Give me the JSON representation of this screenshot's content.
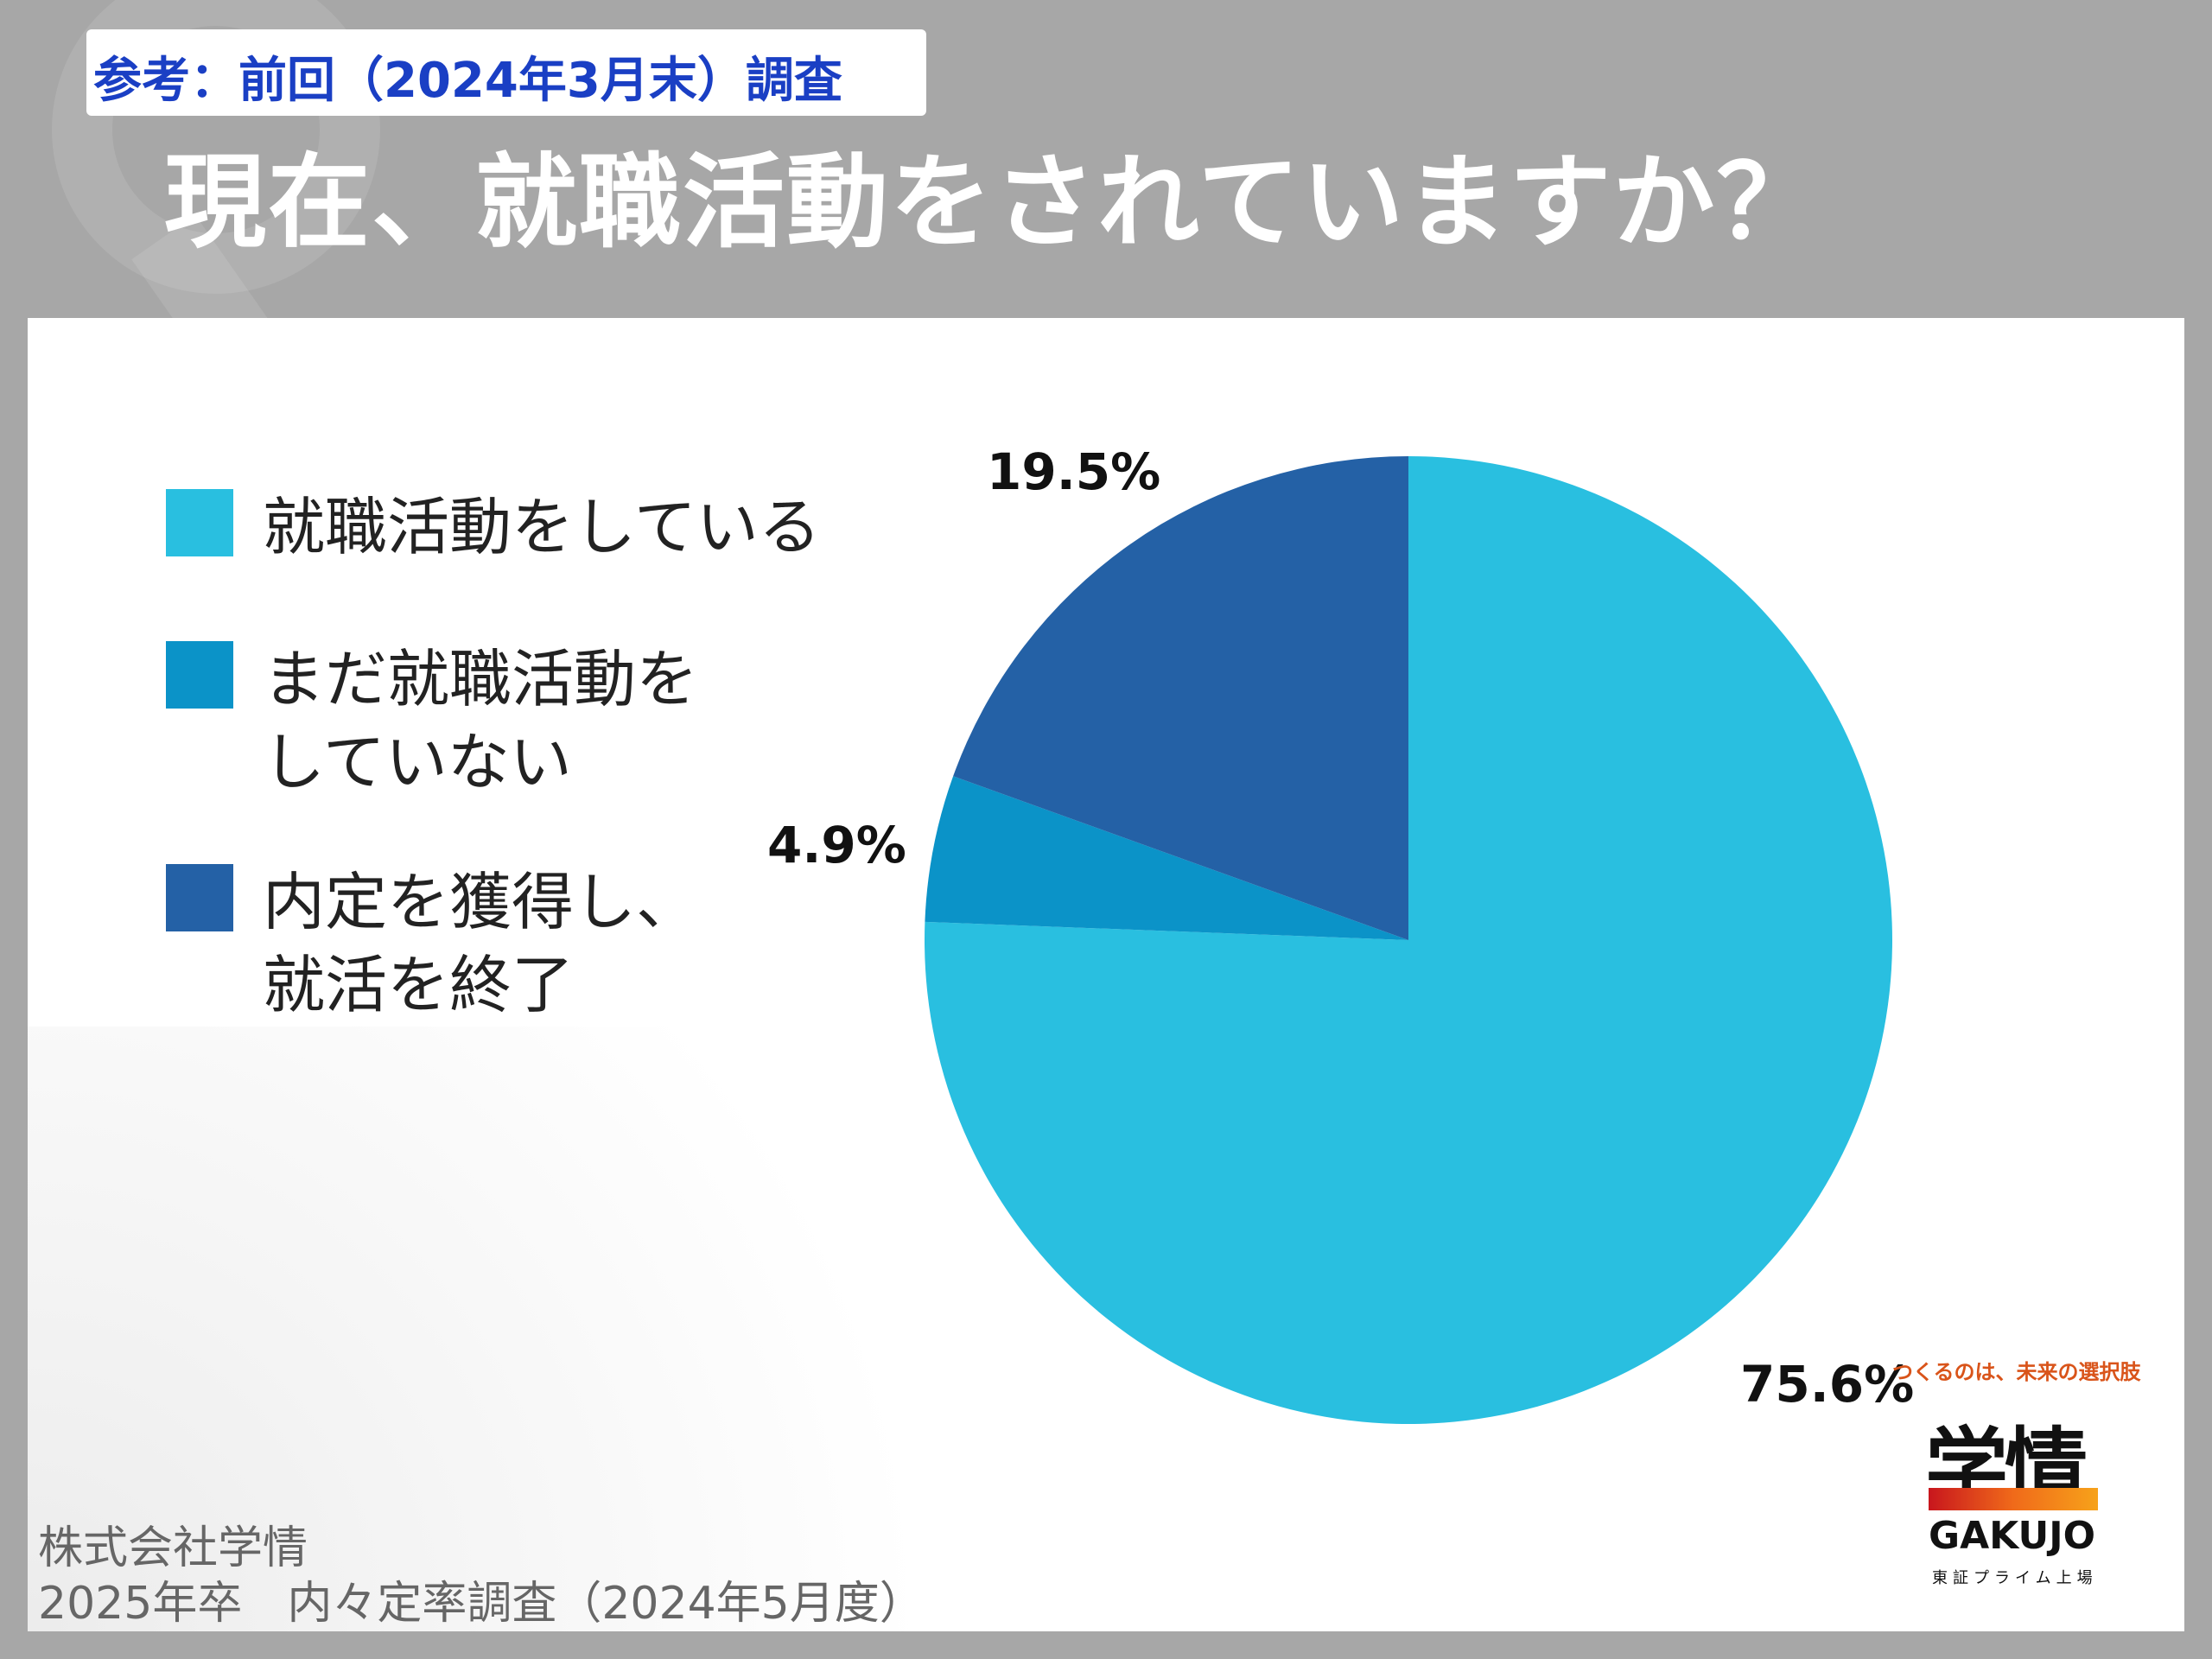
{
  "header": {
    "reference_label": "参考：前回（2024年3月末）調査",
    "title": "現在、就職活動をされていますか？"
  },
  "legend": [
    {
      "line1": "就職活動をしている",
      "line2": "",
      "color": "#29bfe0"
    },
    {
      "line1": "まだ就職活動を",
      "line2": "していない",
      "color": "#0b93c8"
    },
    {
      "line1": "内定を獲得し、",
      "line2": "就活を終了",
      "color": "#2461a6"
    }
  ],
  "chart_data": {
    "type": "pie",
    "title": "現在、就職活動をされていますか？",
    "slices": [
      {
        "label": "就職活動をしている",
        "value": 75.6,
        "display": "75.6%",
        "color": "#29bfe0"
      },
      {
        "label": "まだ就職活動をしていない",
        "value": 4.9,
        "display": "4.9%",
        "color": "#0b93c8"
      },
      {
        "label": "内定を獲得し、就活を終了",
        "value": 19.5,
        "display": "19.5%",
        "color": "#2461a6"
      }
    ],
    "start_angle_deg": 0,
    "direction": "clockwise",
    "legend_position": "left"
  },
  "footer": {
    "company": "株式会社学情",
    "survey": "2025年卒　内々定率調査（2024年5月度）"
  },
  "logo": {
    "slogan": "つくるのは、未来の選択肢",
    "name_ja": "学情",
    "name_en": "GAKUJO",
    "listing": "東証プライム上場"
  }
}
